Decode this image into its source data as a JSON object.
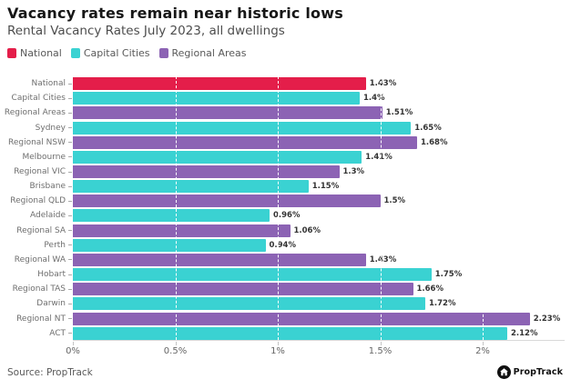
{
  "header": {
    "title": "Vacancy rates remain near historic lows",
    "subtitle": "Rental Vacancy Rates July 2023, all dwellings"
  },
  "legend": {
    "items": [
      {
        "label": "National",
        "color": "#e41e4a"
      },
      {
        "label": "Capital Cities",
        "color": "#3ad2d2"
      },
      {
        "label": "Regional Areas",
        "color": "#8c63b4"
      }
    ]
  },
  "chart_data": {
    "type": "bar",
    "orientation": "horizontal",
    "title": "Vacancy rates remain near historic lows",
    "subtitle": "Rental Vacancy Rates July 2023, all dwellings",
    "categories": [
      "National",
      "Capital Cities",
      "Regional Areas",
      "Sydney",
      "Regional NSW",
      "Melbourne",
      "Regional VIC",
      "Brisbane",
      "Regional QLD",
      "Adelaide",
      "Regional SA",
      "Perth",
      "Regional WA",
      "Hobart",
      "Regional TAS",
      "Darwin",
      "Regional NT",
      "ACT"
    ],
    "values": [
      1.43,
      1.4,
      1.51,
      1.65,
      1.68,
      1.41,
      1.3,
      1.15,
      1.5,
      0.96,
      1.06,
      0.94,
      1.43,
      1.75,
      1.66,
      1.72,
      2.23,
      2.12
    ],
    "value_labels": [
      "1.43%",
      "1.4%",
      "1.51%",
      "1.65%",
      "1.68%",
      "1.41%",
      "1.3%",
      "1.15%",
      "1.5%",
      "0.96%",
      "1.06%",
      "0.94%",
      "1.43%",
      "1.75%",
      "1.66%",
      "1.72%",
      "2.23%",
      "2.12%"
    ],
    "series_keys": [
      "national",
      "capital",
      "regional",
      "capital",
      "regional",
      "capital",
      "regional",
      "capital",
      "regional",
      "capital",
      "regional",
      "capital",
      "regional",
      "capital",
      "regional",
      "capital",
      "regional",
      "capital"
    ],
    "series_colors": {
      "national": "#e41e4a",
      "capital": "#3ad2d2",
      "regional": "#8c63b4"
    },
    "series_legend": [
      {
        "name": "National",
        "key": "national"
      },
      {
        "name": "Capital Cities",
        "key": "capital"
      },
      {
        "name": "Regional Areas",
        "key": "regional"
      }
    ],
    "x_ticks": [
      "0%",
      "0.5%",
      "1%",
      "1.5%",
      "2%"
    ],
    "x_tick_values": [
      0,
      0.5,
      1,
      1.5,
      2
    ],
    "xlim": [
      0,
      2.4
    ],
    "grid": "white dashed vertical gridlines at tick positions over bars",
    "legend_position": "top-left"
  },
  "footer": {
    "source": "Source: PropTrack",
    "logo_text": "PropTrack",
    "logo_icon": "house-in-circle"
  }
}
